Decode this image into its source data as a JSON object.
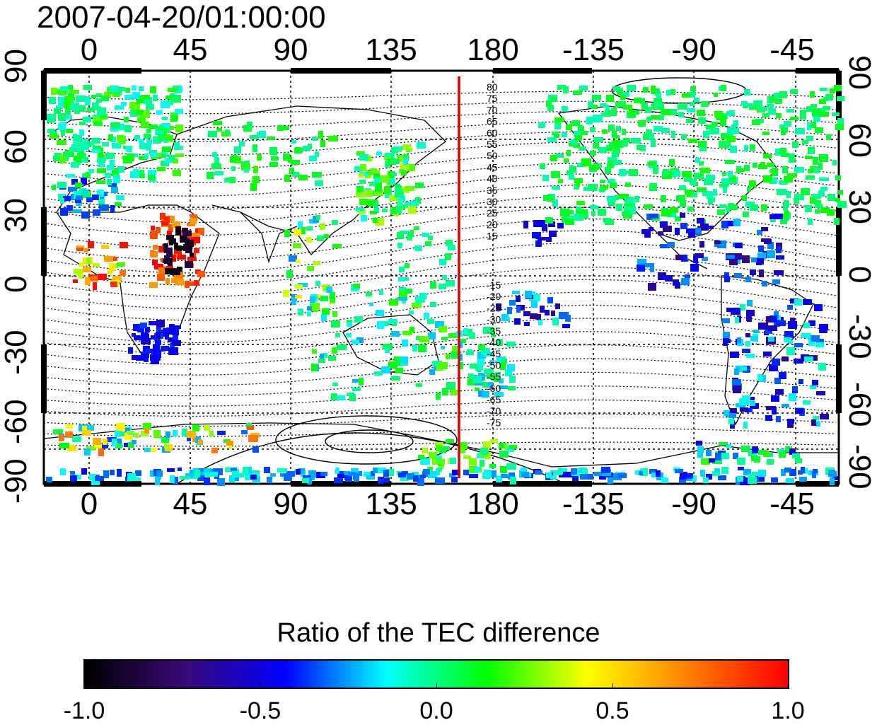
{
  "timestamp": "2007-04-20/01:00:00",
  "map": {
    "x_ticks": [
      "0",
      "45",
      "90",
      "135",
      "180",
      "-135",
      "-90",
      "-45"
    ],
    "y_ticks_left": [
      "90",
      "60",
      "30",
      "0",
      "-30",
      "-60",
      "-90"
    ],
    "y_ticks_right": [
      "90",
      "60",
      "30",
      "0",
      "-30",
      "-60",
      "-90"
    ],
    "magnetic_latitude_labels_north": [
      "80",
      "75",
      "70",
      "65",
      "60",
      "55",
      "50",
      "45",
      "40",
      "35",
      "30",
      "25",
      "20",
      "15"
    ],
    "magnetic_latitude_labels_south": [
      "-15",
      "-20",
      "-25",
      "-30",
      "-35",
      "-40",
      "-45",
      "-50",
      "-55",
      "-60",
      "-65",
      "-70",
      "-75"
    ],
    "meridian_line_longitude": 167,
    "meridian_color": "#dd0000"
  },
  "colorbar": {
    "title": "Ratio of the TEC difference",
    "ticks": [
      "-1.0",
      "-0.5",
      "0.0",
      "0.5",
      "1.0"
    ],
    "stops": [
      "#000000",
      "#3a0a78",
      "#0000ff",
      "#00ffff",
      "#00ff00",
      "#ffff00",
      "#ff8000",
      "#ff0000"
    ]
  }
}
